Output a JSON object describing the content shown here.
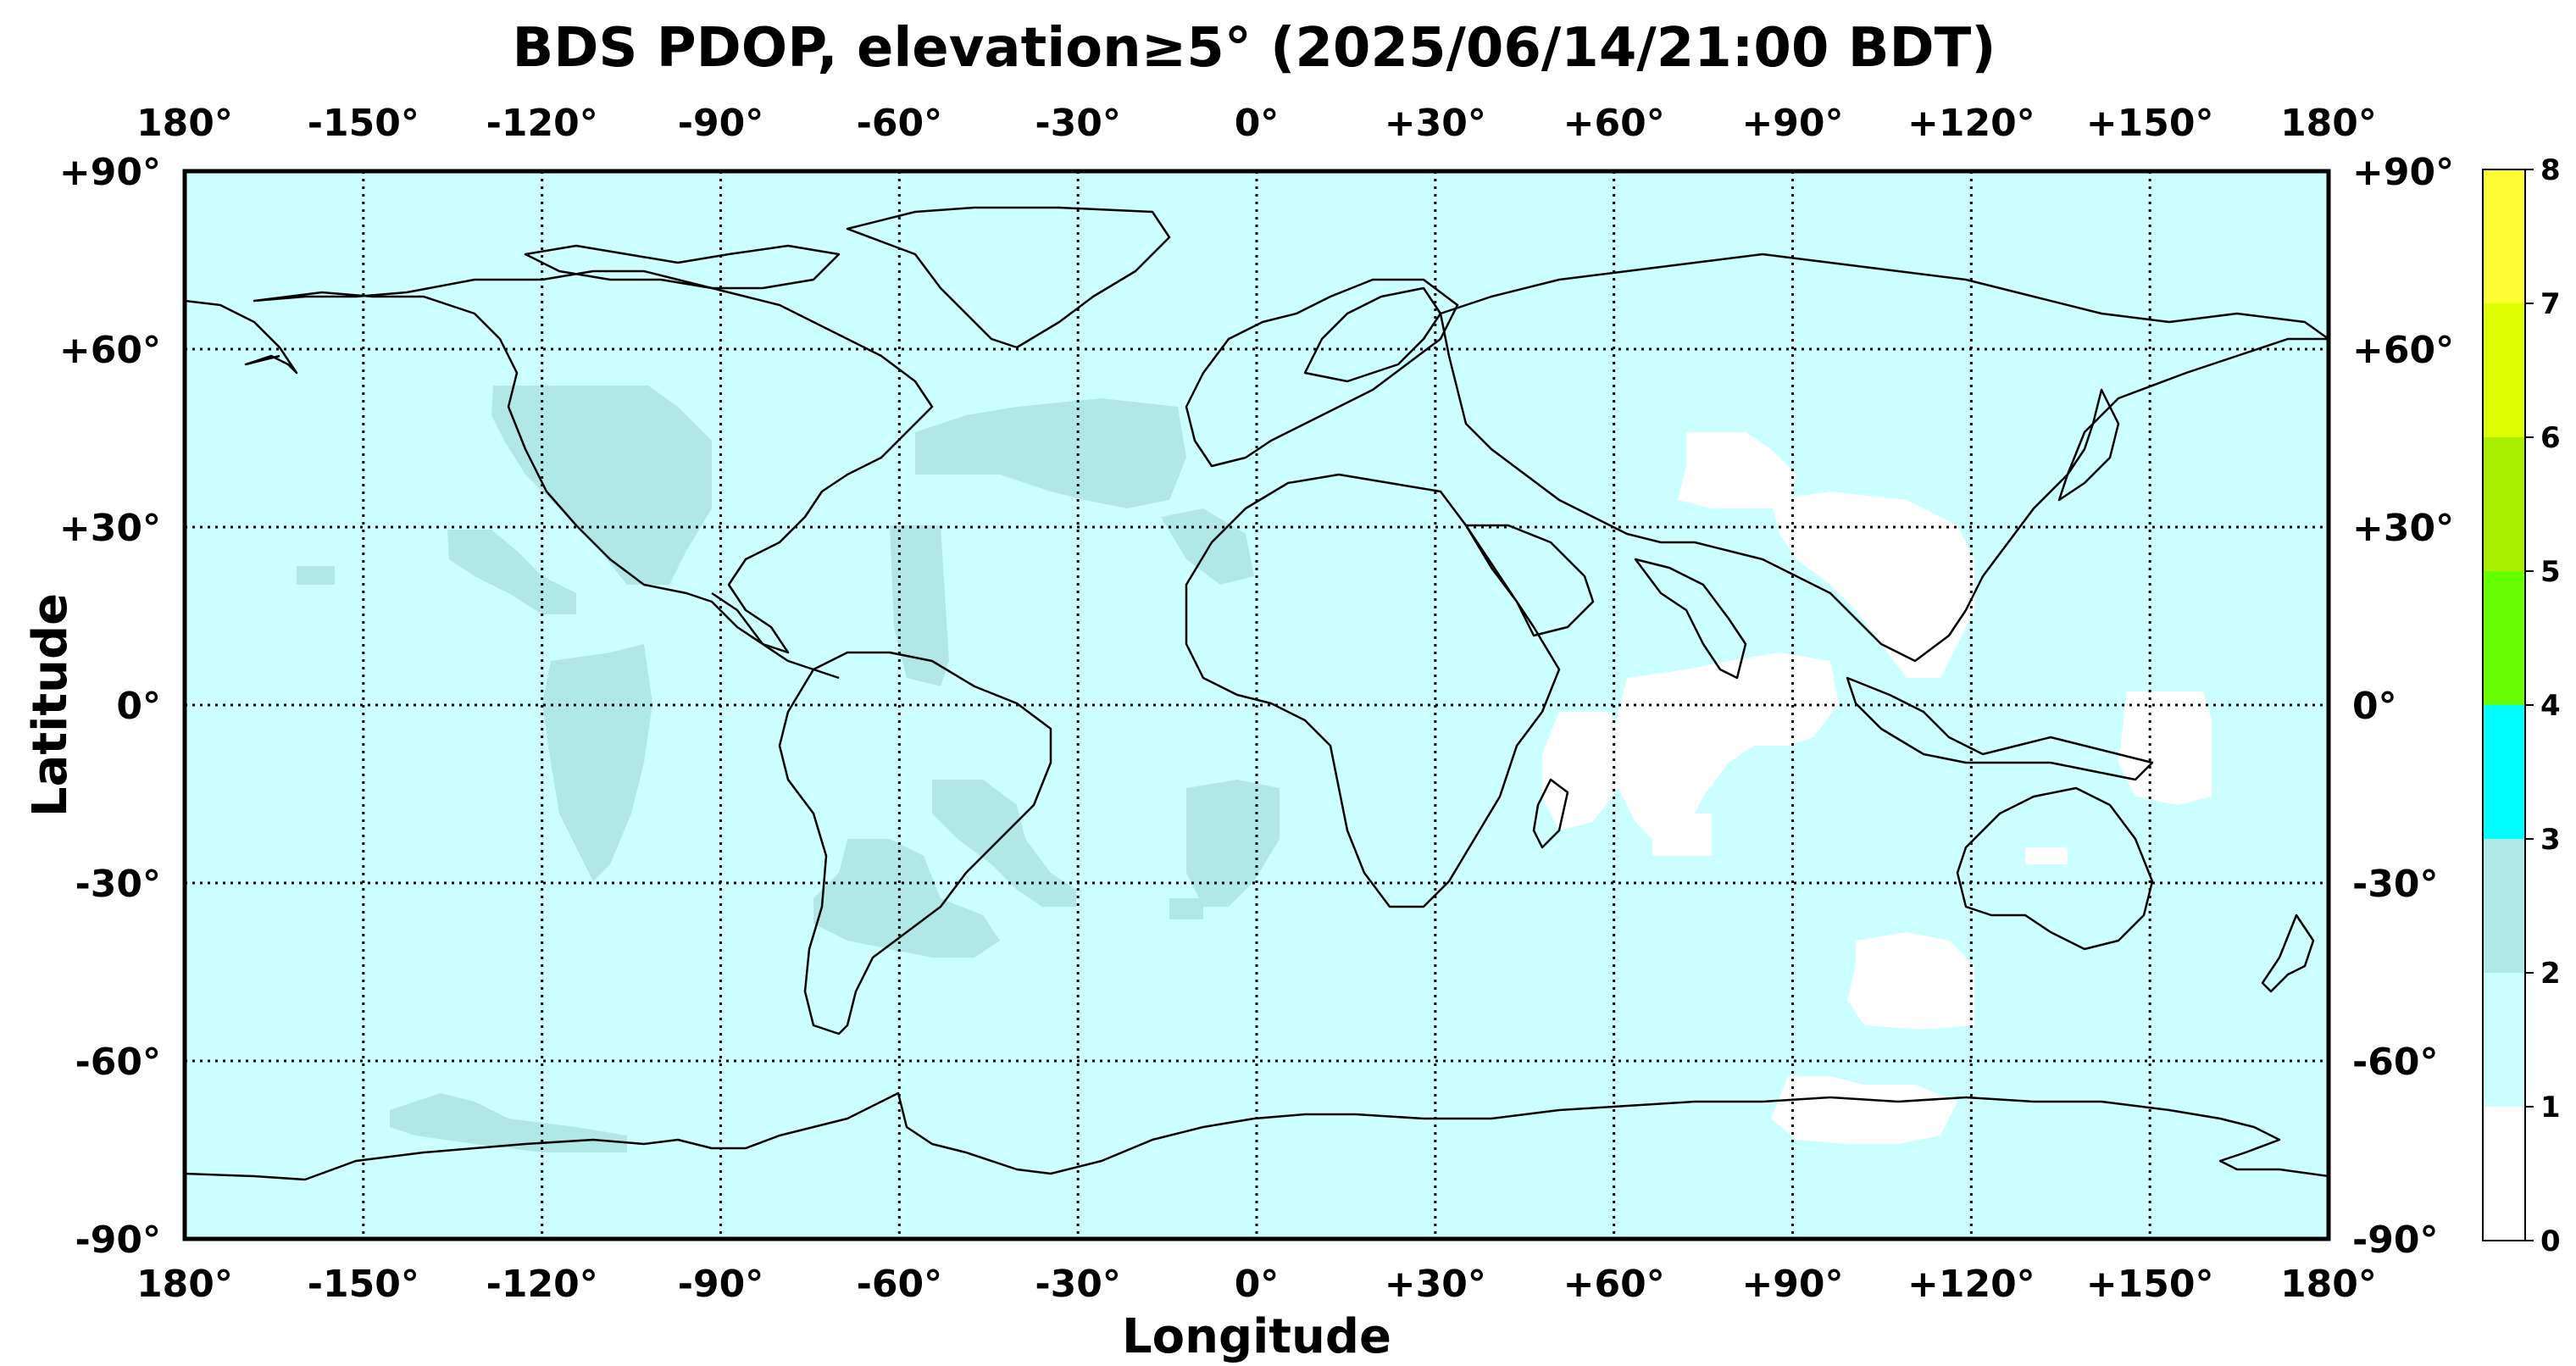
{
  "title": "BDS PDOP, elevation≥5° (2025/06/14/21:00 BDT)",
  "xlabel": "Longitude",
  "ylabel": "Latitude",
  "lon_ticks": [
    "180°",
    "-150°",
    "-120°",
    "-90°",
    "-60°",
    "-30°",
    "0°",
    "+30°",
    "+60°",
    "+90°",
    "+120°",
    "+150°",
    "180°"
  ],
  "lat_ticks": [
    "+90°",
    "+60°",
    "+30°",
    "0°",
    "-30°",
    "-60°",
    "-90°"
  ],
  "colorbar": {
    "ticks": [
      "0",
      "1",
      "2",
      "3",
      "4",
      "5",
      "6",
      "7",
      "8"
    ],
    "colors": [
      "#ffffff",
      "#ccffff",
      "#b0e8e8",
      "#00ffff",
      "#66ff00",
      "#aaee00",
      "#ddff00",
      "#ffff33"
    ]
  },
  "map_colors": {
    "base": "#ccffff",
    "pdop_2_3": "#b0e8e8",
    "pdop_0_1": "#ffffff",
    "coast": "#000000",
    "grid": "#000000"
  }
}
